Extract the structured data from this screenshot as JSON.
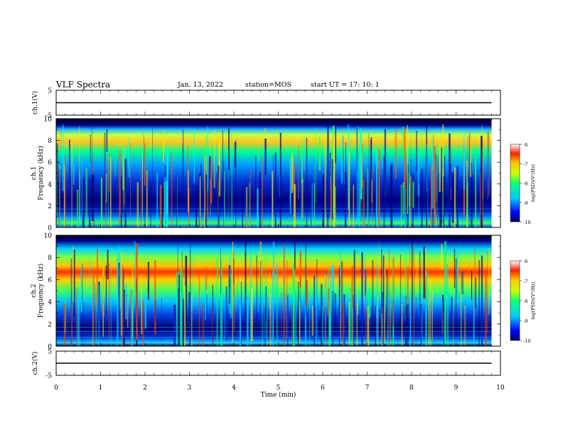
{
  "header": {
    "title": "VLF Spectra",
    "date": "Jan. 13, 2022",
    "station": "station=MOS",
    "start": "start UT =  17: 10: 1"
  },
  "chart_data": [
    {
      "type": "line",
      "title": "",
      "xlabel": "",
      "ylabel": "ch.1(V)",
      "xlim": [
        0,
        10
      ],
      "ylim": [
        -5,
        5
      ],
      "yticks": [
        "5",
        "-5"
      ],
      "series": [
        {
          "x": [
            0,
            9.8
          ],
          "values": [
            0,
            0
          ]
        }
      ]
    },
    {
      "type": "heatmap",
      "ylabel": "ch.1 Frequency (kHz)",
      "xlim": [
        0,
        10
      ],
      "ylim": [
        0,
        10
      ],
      "yticks": [
        "0",
        "2",
        "4",
        "6",
        "8",
        "10"
      ],
      "data_extent_min": 9.8,
      "colorbar": {
        "label": "log(PSD)(V²/Hz)",
        "range": [
          -10,
          -6
        ],
        "ticks": [
          "-6",
          "-7",
          "-8",
          "-9",
          "-10"
        ]
      }
    },
    {
      "type": "heatmap",
      "ylabel": "ch.2 Frequency (kHz)",
      "xlim": [
        0,
        10
      ],
      "ylim": [
        0,
        10
      ],
      "yticks": [
        "0",
        "2",
        "4",
        "6",
        "8",
        "10"
      ],
      "data_extent_min": 9.8,
      "colorbar": {
        "label": "log(PSD)(V²/Hz)",
        "range": [
          -10,
          -6
        ],
        "ticks": [
          "-6",
          "-7",
          "-8",
          "-9",
          "-10"
        ]
      }
    },
    {
      "type": "line",
      "ylabel": "ch.2(V)",
      "xlabel": "Time (min)",
      "xlim": [
        0,
        10
      ],
      "ylim": [
        -5,
        5
      ],
      "yticks": [
        "5",
        "-5"
      ],
      "xticks": [
        "0",
        "1",
        "2",
        "3",
        "4",
        "5",
        "6",
        "7",
        "8",
        "9",
        "10"
      ],
      "series": [
        {
          "x": [
            0,
            9.8
          ],
          "values": [
            0,
            0
          ]
        }
      ]
    }
  ]
}
